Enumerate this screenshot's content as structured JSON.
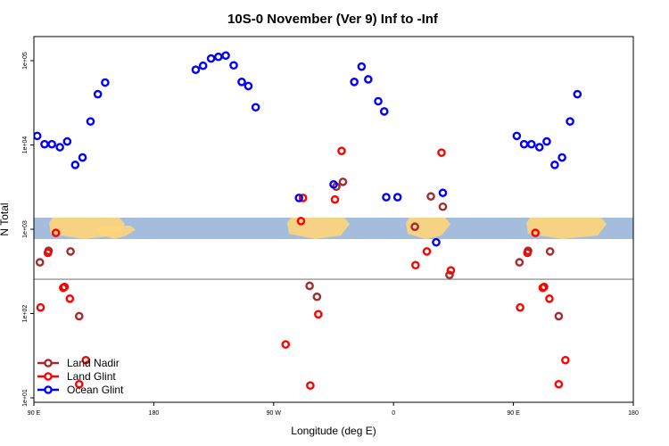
{
  "chart_data": {
    "type": "scatter",
    "title": "10S-0 November (Ver 9)   Inf to -Inf",
    "xlabel": "Longitude (deg E)",
    "ylabel": "N Total",
    "x_scale": "shifted-longitude",
    "y_scale": "log",
    "ylim": [
      8,
      200000
    ],
    "x_ticks": [
      {
        "lon": 90,
        "label": "90 E"
      },
      {
        "lon": 180,
        "label": "180"
      },
      {
        "lon": -90,
        "label": "90 W"
      },
      {
        "lon": 0,
        "label": "0"
      },
      {
        "lon": 90.001,
        "label": "90 E"
      },
      {
        "lon": 180.001,
        "label": "180"
      }
    ],
    "y_ticks": [
      {
        "value": 10,
        "label": "1e+01"
      },
      {
        "value": 100,
        "label": "1e+02"
      },
      {
        "value": 1000,
        "label": "1e+03"
      },
      {
        "value": 10000,
        "label": "1e+04"
      },
      {
        "value": 100000,
        "label": "1e+05"
      }
    ],
    "reference_line": {
      "value": 255
    },
    "legend": {
      "placement": "bottom-left"
    },
    "series": [
      {
        "name": "Land Nadir",
        "color": "#a52a2a",
        "points": [
          [
            94.5,
            405
          ],
          [
            101,
            555
          ],
          [
            117.5,
            545
          ],
          [
            124,
            93
          ],
          [
            -63,
            213
          ],
          [
            -57.5,
            158
          ],
          [
            -43,
            3200
          ],
          [
            -38,
            3650
          ],
          [
            16,
            1070
          ],
          [
            28,
            2450
          ],
          [
            37,
            1850
          ],
          [
            42,
            287
          ],
          [
            94.5,
            405
          ],
          [
            101,
            555
          ],
          [
            117.5,
            545
          ],
          [
            124,
            93
          ]
        ]
      },
      {
        "name": "Land Glint",
        "color": "#ff0000",
        "points": [
          [
            95,
            118
          ],
          [
            100.5,
            525
          ],
          [
            106.5,
            905
          ],
          [
            112,
            202
          ],
          [
            113,
            207
          ],
          [
            117,
            150
          ],
          [
            124,
            14.5
          ],
          [
            129,
            28
          ],
          [
            -81,
            43
          ],
          [
            -69.5,
            1250
          ],
          [
            -68,
            2350
          ],
          [
            -62.5,
            14
          ],
          [
            -56.5,
            98
          ],
          [
            -44,
            2250
          ],
          [
            -39,
            8500
          ],
          [
            16.5,
            375
          ],
          [
            25,
            545
          ],
          [
            36,
            8100
          ],
          [
            43,
            325
          ],
          [
            95,
            118
          ],
          [
            100.5,
            525
          ],
          [
            106.5,
            905
          ],
          [
            112,
            202
          ],
          [
            113,
            207
          ],
          [
            117,
            150
          ],
          [
            124,
            14.5
          ],
          [
            129,
            28
          ]
        ]
      },
      {
        "name": "Ocean Glint",
        "color": "#0000ff",
        "points": [
          [
            92.5,
            12800
          ],
          [
            98,
            10200
          ],
          [
            103.5,
            10200
          ],
          [
            109.5,
            9400
          ],
          [
            115,
            11000
          ],
          [
            121,
            5800
          ],
          [
            126.5,
            7100
          ],
          [
            132.5,
            19000
          ],
          [
            138,
            40000
          ],
          [
            143.5,
            55000
          ],
          [
            -148.5,
            78000
          ],
          [
            -143,
            87000
          ],
          [
            -137,
            106000
          ],
          [
            -131.5,
            111000
          ],
          [
            -126,
            115000
          ],
          [
            -120,
            88000
          ],
          [
            -114,
            56000
          ],
          [
            -109,
            50000
          ],
          [
            -103.5,
            28000
          ],
          [
            -71,
            2350
          ],
          [
            -45,
            3400
          ],
          [
            -29.5,
            56000
          ],
          [
            -24,
            85000
          ],
          [
            -19,
            60000
          ],
          [
            -11.5,
            33000
          ],
          [
            -7,
            25000
          ],
          [
            3,
            2400
          ],
          [
            -5.5,
            2400
          ],
          [
            32,
            700
          ],
          [
            37,
            2700
          ],
          [
            92.5,
            12800
          ],
          [
            98,
            10200
          ],
          [
            103.5,
            10200
          ],
          [
            109.5,
            9400
          ],
          [
            115,
            11000
          ],
          [
            121,
            5800
          ],
          [
            126.5,
            7100
          ],
          [
            132.5,
            19000
          ],
          [
            138,
            40000
          ]
        ]
      }
    ]
  }
}
